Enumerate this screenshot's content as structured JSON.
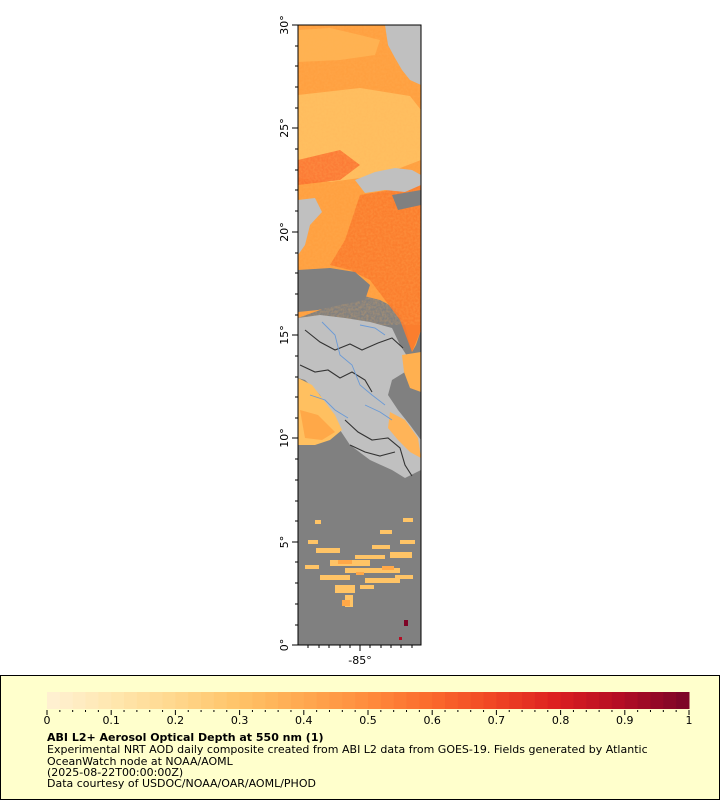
{
  "map": {
    "lat_ticks": [
      "0°",
      "5°",
      "10°",
      "15°",
      "20°",
      "25°",
      "30°"
    ],
    "lon_ticks": [
      "-85°"
    ],
    "colors": {
      "land": "#c0c0c0",
      "no_data": "#808080",
      "border": "#333333",
      "river": "#6a9ad6",
      "frame": "#000000"
    }
  },
  "legend": {
    "ticks": [
      "0",
      "0.1",
      "0.2",
      "0.3",
      "0.4",
      "0.5",
      "0.6",
      "0.7",
      "0.8",
      "0.9",
      "1"
    ],
    "colors": [
      "#fff0d0",
      "#ffe6ad",
      "#ffd68a",
      "#ffc266",
      "#ffa84f",
      "#ff8c3d",
      "#fb6a2c",
      "#f04624",
      "#dc1f20",
      "#b40d24",
      "#7e0527"
    ],
    "title": "ABI L2+ Aerosol Optical Depth at 550 nm (1)",
    "description_line1": "Experimental NRT AOD daily composite created from ABI L2 data from GOES-19. Fields generated by Atlantic",
    "description_line2": "OceanWatch node at NOAA/AOML",
    "date": "(2025-08-22T00:00:00Z)",
    "credit": "Data courtesy of USDOC/NOAA/OAR/AOML/PHOD"
  }
}
